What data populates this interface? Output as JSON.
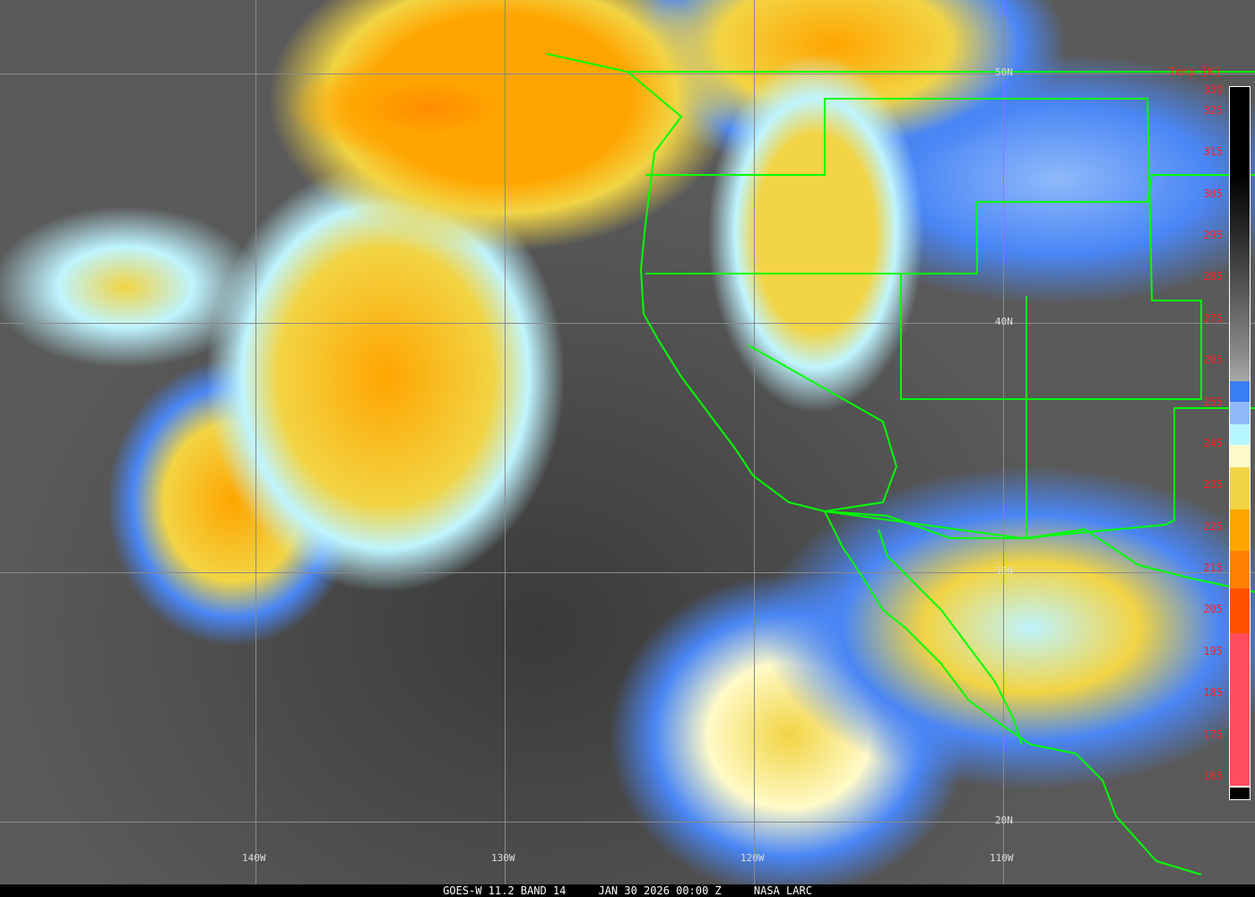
{
  "caption": {
    "product": "GOES-W 11.2 BAND 14",
    "datetime": "JAN 30 2026 00:00 Z",
    "credit": "NASA LARC"
  },
  "latitude_labels": [
    "50N",
    "40N",
    "30N",
    "20N"
  ],
  "longitude_labels": [
    "140W",
    "130W",
    "120W",
    "110W"
  ],
  "colorbar": {
    "title": "Temp [K]",
    "ticks": [
      "330",
      "325",
      "315",
      "305",
      "295",
      "285",
      "275",
      "265",
      "255",
      "245",
      "235",
      "225",
      "215",
      "205",
      "195",
      "185",
      "175",
      "165"
    ],
    "colors": {
      "blue": "#3a7ef5",
      "light_blue": "#8fb9fa",
      "cyan": "#b5f5ff",
      "pale_yellow": "#fffac8",
      "yellow": "#f2d444",
      "orange": "#ffa500",
      "dark_orange": "#ff8000",
      "red_orange": "#ff5000",
      "red": "#ff4d5e"
    }
  },
  "border_color": "#00ff00"
}
